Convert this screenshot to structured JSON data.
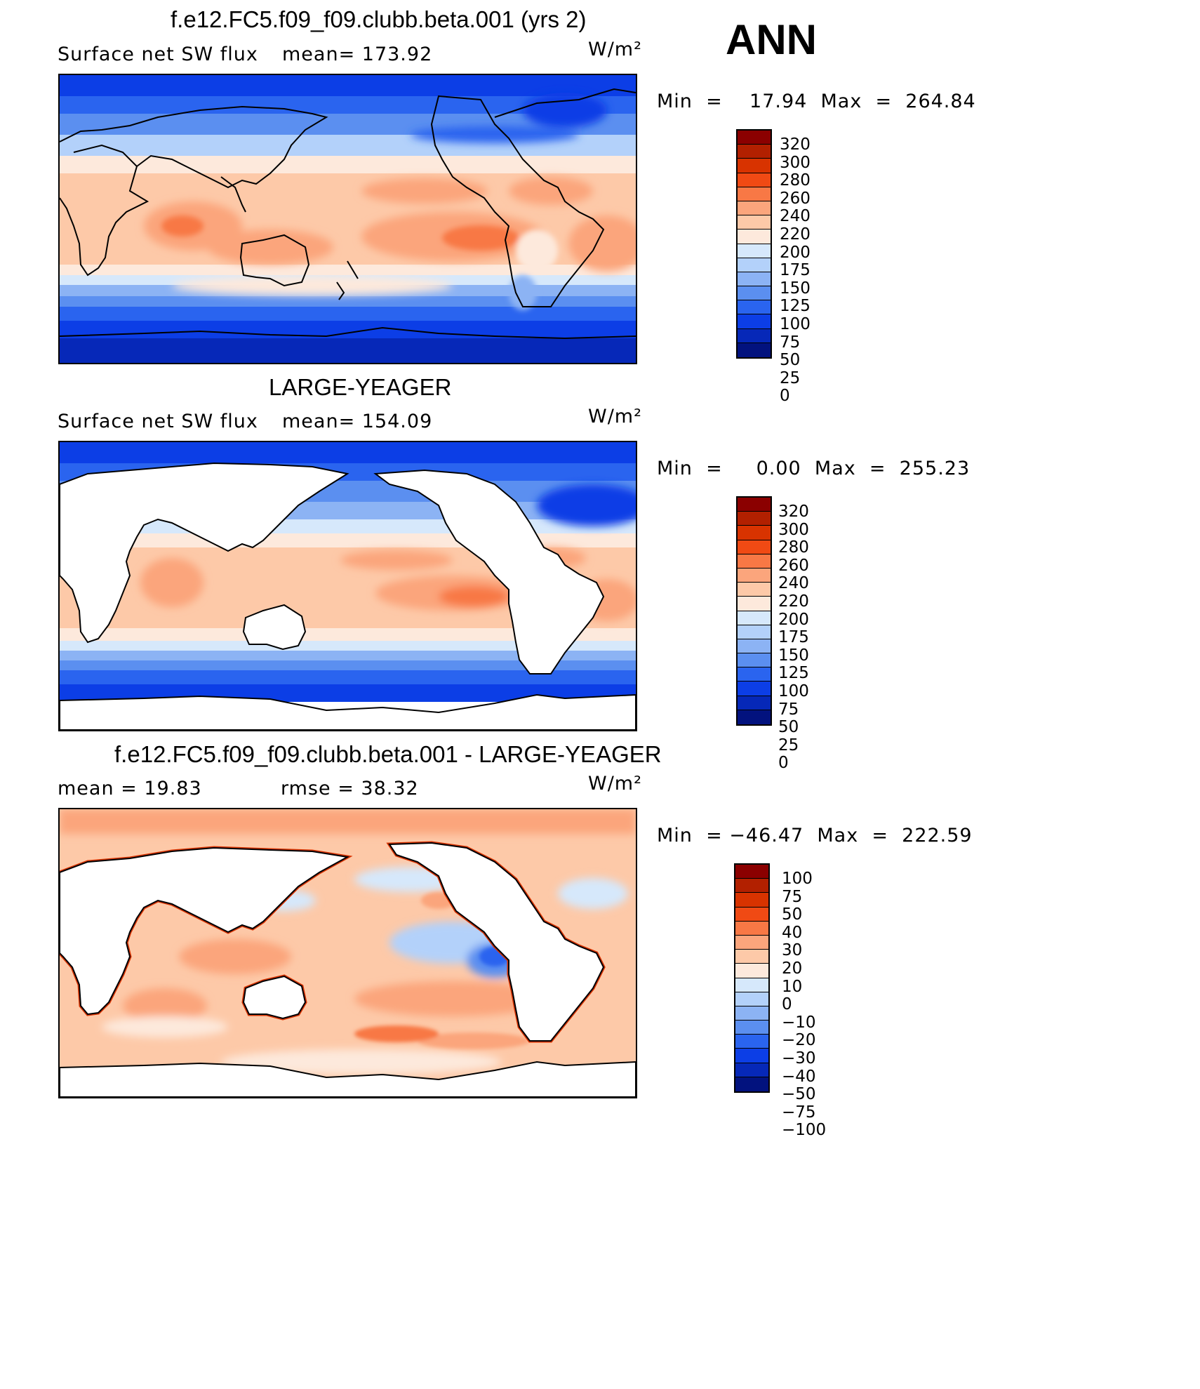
{
  "season": "ANN",
  "units": "W/m²",
  "panels": [
    {
      "title": "f.e12.FC5.f09_f09.clubb.beta.001 (yrs 2)",
      "field": "Surface net SW flux",
      "stat": "mean=  173.92",
      "minmax": "Min  =    17.94  Max  =  264.84"
    },
    {
      "title": "LARGE-YEAGER",
      "field": "Surface net SW flux",
      "stat": "mean=  154.09",
      "minmax": "Min  =     0.00  Max  =  255.23"
    },
    {
      "title": "f.e12.FC5.f09_f09.clubb.beta.001 - LARGE-YEAGER",
      "field": "mean  =     19.83",
      "stat": "rmse  =     38.32",
      "minmax": "Min  = −46.47  Max  =  222.59"
    }
  ],
  "colorbars": {
    "absolute": {
      "labels": [
        "320",
        "300",
        "280",
        "260",
        "240",
        "220",
        "200",
        "175",
        "150",
        "125",
        "100",
        "75",
        "50",
        "25",
        "0"
      ],
      "colors": [
        "#8b0000",
        "#b22000",
        "#d83300",
        "#f04a14",
        "#f87845",
        "#fba57c",
        "#fdc9a8",
        "#fde9dc",
        "#d6e8fb",
        "#b3d1fa",
        "#8cb3f4",
        "#5b8ff0",
        "#2a64ef",
        "#0c3ee6",
        "#0628b8",
        "#02127e"
      ]
    },
    "difference": {
      "labels": [
        "100",
        "75",
        "50",
        "40",
        "30",
        "20",
        "10",
        "0",
        "−10",
        "−20",
        "−30",
        "−40",
        "−50",
        "−75",
        "−100"
      ],
      "colors": [
        "#8b0000",
        "#b22000",
        "#d83300",
        "#f04a14",
        "#f87845",
        "#fba57c",
        "#fdc9a8",
        "#fde9dc",
        "#d6e8fb",
        "#b3d1fa",
        "#8cb3f4",
        "#5b8ff0",
        "#2a64ef",
        "#0c3ee6",
        "#0628b8",
        "#02127e"
      ]
    }
  }
}
